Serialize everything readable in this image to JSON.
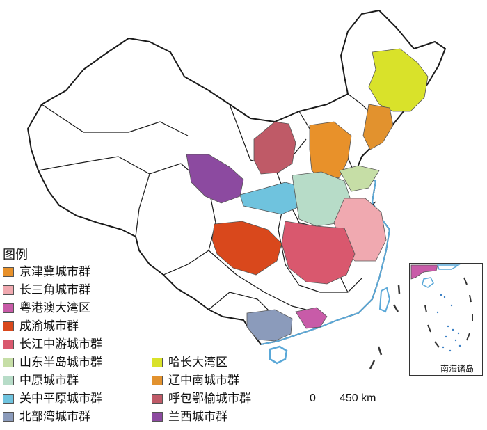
{
  "legend": {
    "title": "图例",
    "items": [
      {
        "label": "京津冀城市群",
        "color": "#e8912a"
      },
      {
        "label": "长三角城市群",
        "color": "#f0a9b0"
      },
      {
        "label": "粤港澳大湾区",
        "color": "#c85ba8"
      },
      {
        "label": "成渝城市群",
        "color": "#d9481c"
      },
      {
        "label": "长江中游城市群",
        "color": "#d9586e"
      },
      {
        "label": "山东半岛城市群",
        "color": "#c6dea6"
      },
      {
        "label": "中原城市群",
        "color": "#b7dcc8"
      },
      {
        "label": "关中平原城市群",
        "color": "#6fc3de"
      },
      {
        "label": "北部湾城市群",
        "color": "#8b9bbb"
      },
      {
        "label": "哈长大湾区",
        "color": "#d9e22a"
      },
      {
        "label": "辽中南城市群",
        "color": "#e2922e"
      },
      {
        "label": "呼包鄂榆城市群",
        "color": "#bf5a67"
      },
      {
        "label": "兰西城市群",
        "color": "#8c4aa0"
      }
    ]
  },
  "scale": {
    "zero": "0",
    "distance": "450 km"
  },
  "inset": {
    "label": "南海诸岛"
  },
  "colors": {
    "border": "#1a1a1a",
    "province": "#555555",
    "coast": "#5aa8d8"
  }
}
